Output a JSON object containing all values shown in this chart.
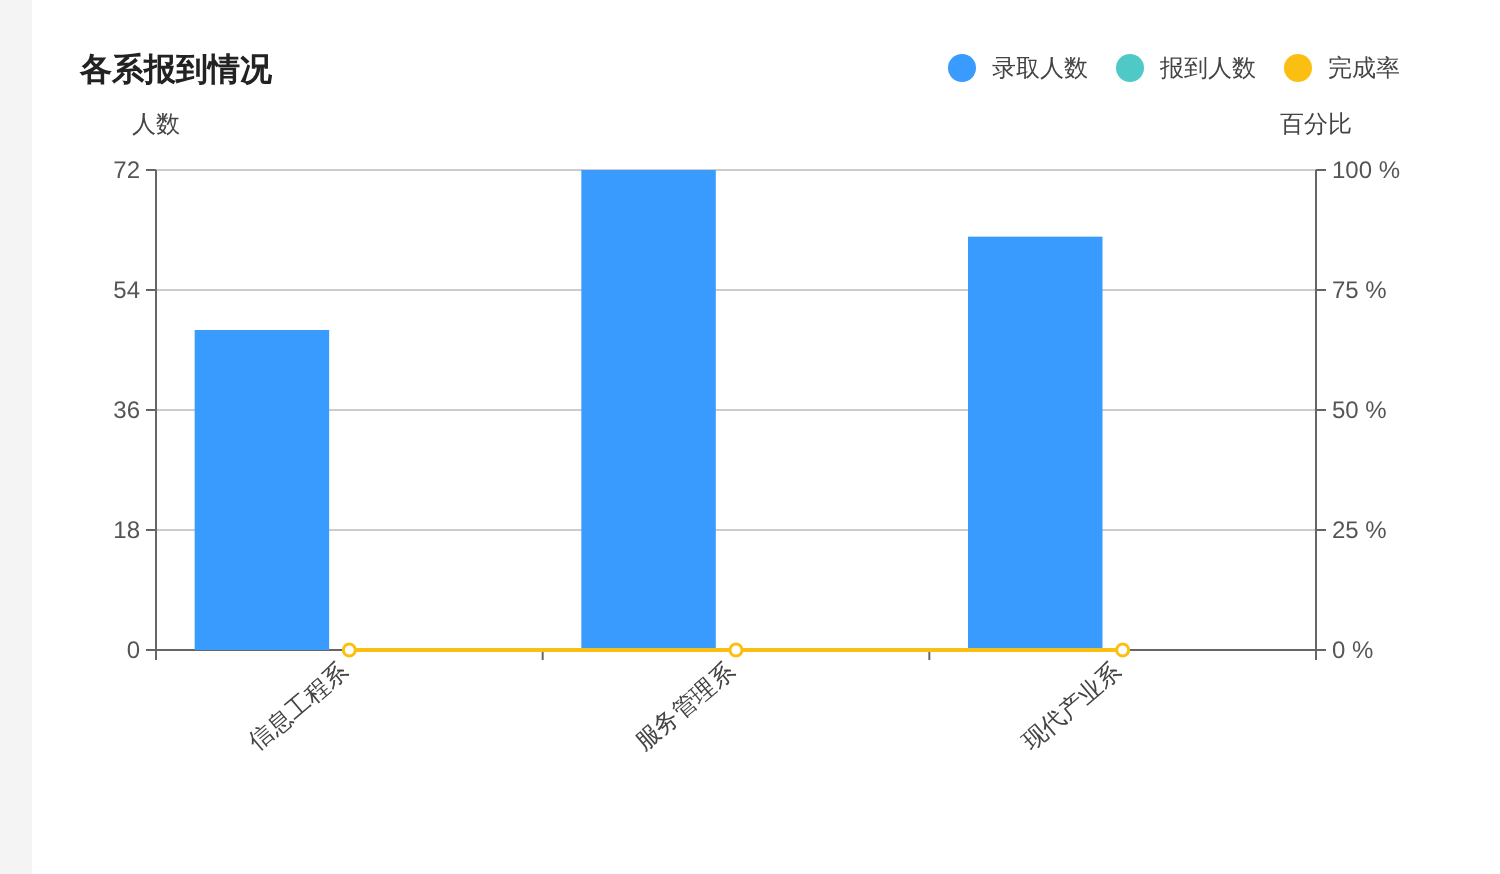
{
  "chart_data": {
    "type": "bar",
    "title": "各系报到情况",
    "ylabel": "人数",
    "y2label": "百分比",
    "categories": [
      "信息工程系",
      "服务管理系",
      "现代产业系"
    ],
    "series": [
      {
        "name": "录取人数",
        "color": "#3a9bff",
        "values": [
          48,
          72,
          62
        ]
      },
      {
        "name": "报到人数",
        "color": "#4fc9c5",
        "values": [
          0,
          0,
          0
        ]
      },
      {
        "name": "完成率",
        "type": "line",
        "axis": "y2",
        "color": "#fbbf14",
        "values": [
          0,
          0,
          0
        ]
      }
    ],
    "ylim": [
      0,
      72
    ],
    "yticks": [
      0,
      18,
      36,
      54,
      72
    ],
    "y2lim": [
      0,
      100
    ],
    "y2ticks": [
      {
        "value": 0,
        "label": "0 %"
      },
      {
        "value": 25,
        "label": "25 %"
      },
      {
        "value": 50,
        "label": "50 %"
      },
      {
        "value": 75,
        "label": "75 %"
      },
      {
        "value": 100,
        "label": "100 %"
      }
    ],
    "grid": "y",
    "legend": "top right",
    "marker": "circle"
  }
}
